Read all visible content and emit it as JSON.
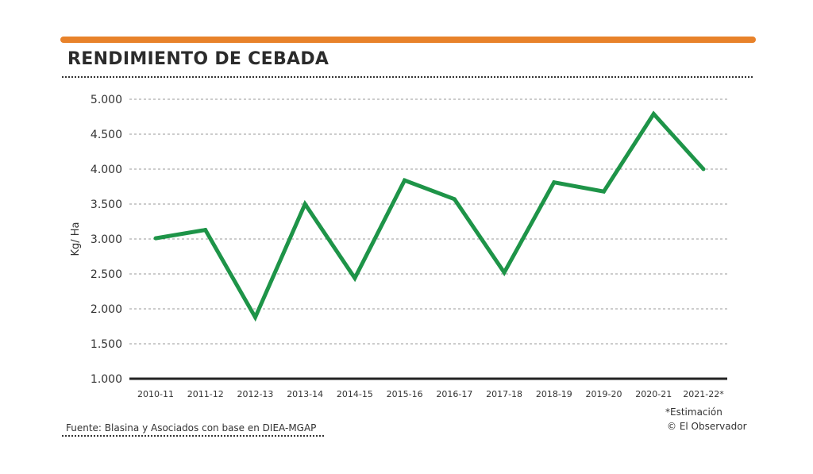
{
  "header": {
    "title": "RENDIMIENTO DE CEBADA"
  },
  "colors": {
    "accent_bar": "#e8822a",
    "line": "#1e9448",
    "grid": "#9a9a9a",
    "baseline": "#222222"
  },
  "chart_data": {
    "type": "line",
    "title": "RENDIMIENTO DE CEBADA",
    "xlabel": "",
    "ylabel": "Kg/ Ha",
    "ylim": [
      1000,
      5000
    ],
    "yticks": [
      1000,
      1500,
      2000,
      2500,
      3000,
      3500,
      4000,
      4500,
      5000
    ],
    "ytick_labels": [
      "1.000",
      "1.500",
      "2.000",
      "2.500",
      "3.000",
      "3.500",
      "4.000",
      "4.500",
      "5.000"
    ],
    "grid": true,
    "legend": "none",
    "categories": [
      "2010-11",
      "2011-12",
      "2012-13",
      "2013-14",
      "2014-15",
      "2015-16",
      "2016-17",
      "2017-18",
      "2018-19",
      "2019-20",
      "2020-21",
      "2021-22*"
    ],
    "series": [
      {
        "values": [
          3010,
          3130,
          1880,
          3500,
          2440,
          3840,
          3570,
          2520,
          3810,
          3680,
          4790,
          4000
        ]
      }
    ]
  },
  "footer": {
    "source": "Fuente: Blasina y Asociados con base en DIEA-MGAP",
    "note": "*Estimación",
    "credit": "© El Observador"
  }
}
